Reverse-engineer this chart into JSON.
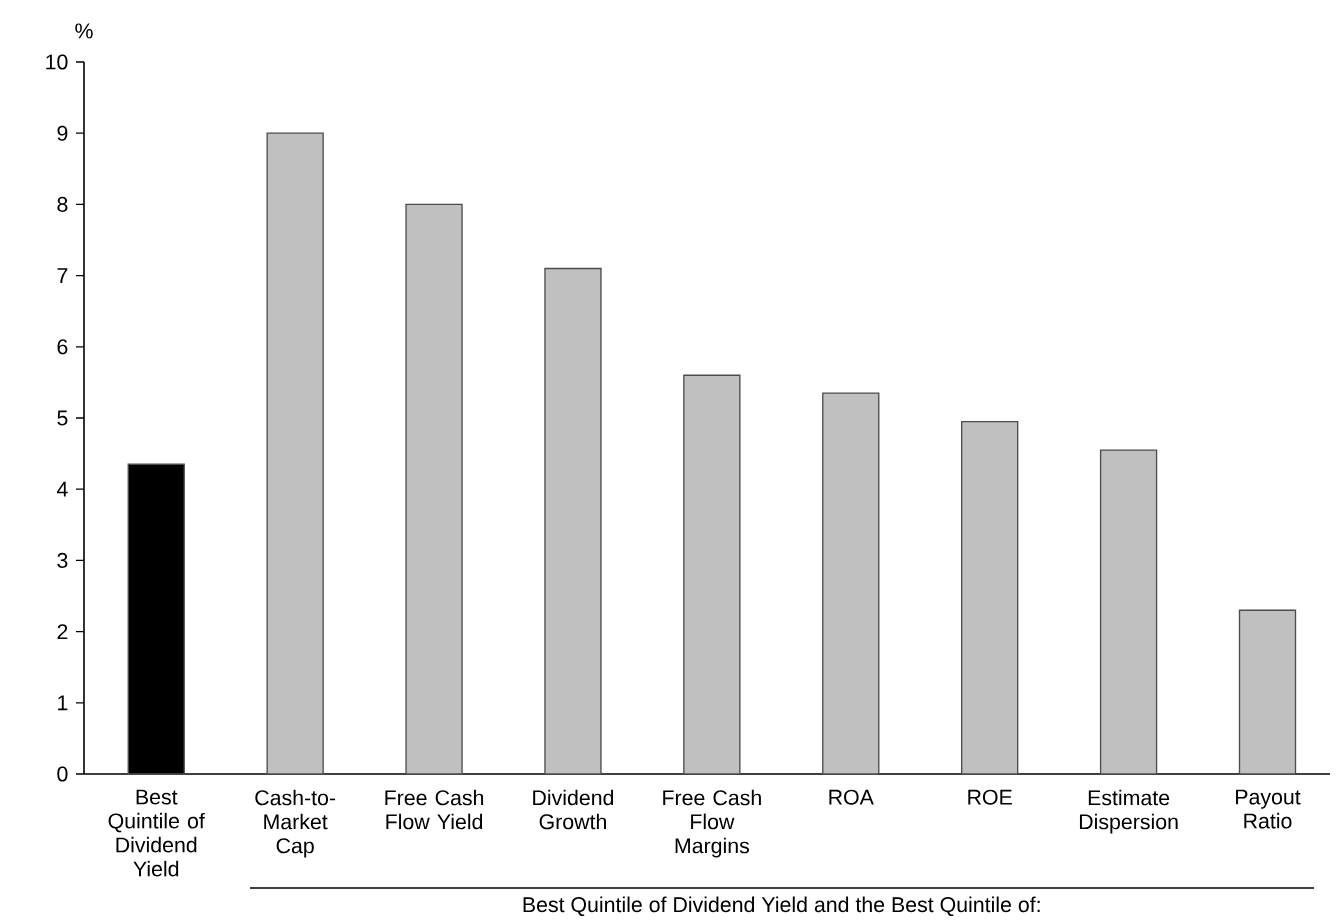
{
  "chart_data": {
    "type": "bar",
    "ylabel": "%",
    "xlabel": "Best Quintile of Dividend Yield and the Best Quintile of:",
    "categories": [
      "Best Quintile of Dividend Yield",
      "Cash-to-Market Cap",
      "Free Cash Flow Yield",
      "Dividend Growth",
      "Free Cash Flow Margins",
      "ROA",
      "ROE",
      "Estimate Dispersion",
      "Payout Ratio"
    ],
    "values": [
      4.35,
      9.0,
      8.0,
      7.1,
      5.6,
      5.35,
      4.95,
      4.55,
      2.3
    ],
    "colors": [
      "#000000",
      "#c0c0c0",
      "#c0c0c0",
      "#c0c0c0",
      "#c0c0c0",
      "#c0c0c0",
      "#c0c0c0",
      "#c0c0c0",
      "#c0c0c0"
    ],
    "ylim": [
      0,
      10
    ],
    "yticks": [
      0,
      1,
      2,
      3,
      4,
      5,
      6,
      7,
      8,
      9,
      10
    ]
  }
}
